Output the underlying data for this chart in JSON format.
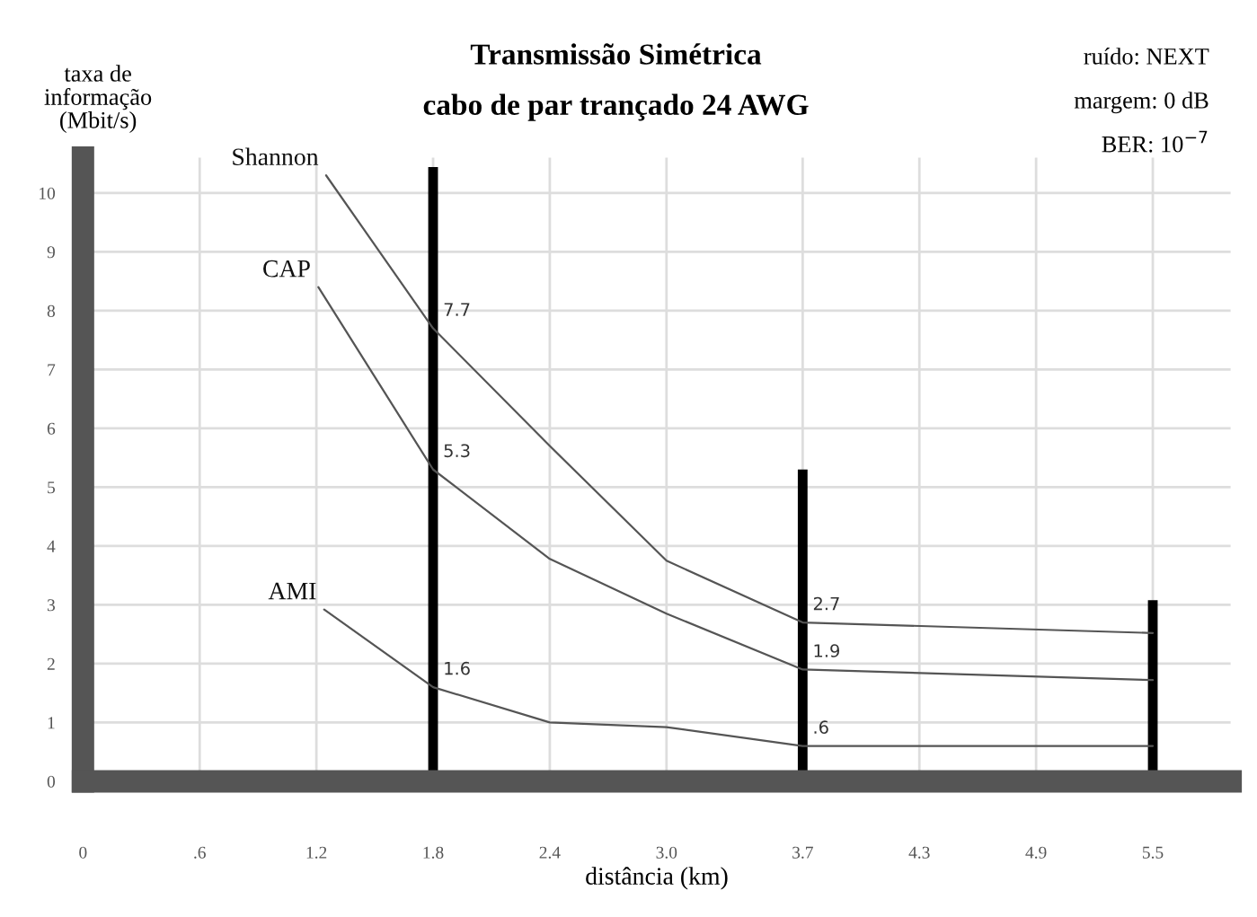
{
  "chart_data": {
    "type": "line",
    "title": "Transmissão Simétrica",
    "subtitle": "cabo de par trançado 24 AWG",
    "xlabel": "distância (km)",
    "ylabel": "taxa de\ninformação\n(Mbit/s)",
    "annotations": [
      "ruído: NEXT",
      "margem: 0 dB",
      "BER: 10$^{−7}$"
    ],
    "xlim": [
      0,
      5.9
    ],
    "ylim": [
      0,
      10.6
    ],
    "xticks": [
      0,
      {
        "value": 0.6,
        "label": ".6"
      },
      1.2,
      1.8,
      2.4,
      {
        "value": 3,
        "label": "3.0"
      },
      3.7,
      4.3,
      4.9,
      5.5
    ],
    "yticks": [
      0,
      1,
      2,
      3,
      4,
      5,
      6,
      7,
      8,
      9,
      10
    ],
    "grid": true,
    "legend": false,
    "series": [
      {
        "name": "Shannon",
        "color": "#555555",
        "x": [
          1.25,
          1.8,
          2.4,
          3.0,
          3.7,
          5.5
        ],
        "values": [
          10.3,
          7.7,
          5.7,
          3.75,
          2.7,
          2.52
        ],
        "value_labels": [
          null,
          "7.7",
          null,
          null,
          "2.7",
          null
        ]
      },
      {
        "name": "CAP",
        "color": "#555555",
        "x": [
          1.21,
          1.8,
          2.4,
          3.0,
          3.7,
          5.5
        ],
        "values": [
          8.4,
          5.3,
          3.78,
          2.85,
          1.9,
          1.72
        ],
        "value_labels": [
          null,
          "5.3",
          null,
          null,
          "1.9",
          null
        ]
      },
      {
        "name": "AMI",
        "color": "#555555",
        "x": [
          1.24,
          1.8,
          2.4,
          3.0,
          3.7,
          5.5
        ],
        "values": [
          2.92,
          1.6,
          1.0,
          0.92,
          0.6,
          0.6
        ],
        "value_labels": [
          null,
          "1.6",
          null,
          null,
          ".6",
          null
        ]
      },
      {
        "type": "bar",
        "color": "#000000",
        "x": [
          1.8,
          3.7,
          5.5
        ],
        "values": [
          10.44,
          5.3,
          3.08
        ]
      }
    ]
  }
}
